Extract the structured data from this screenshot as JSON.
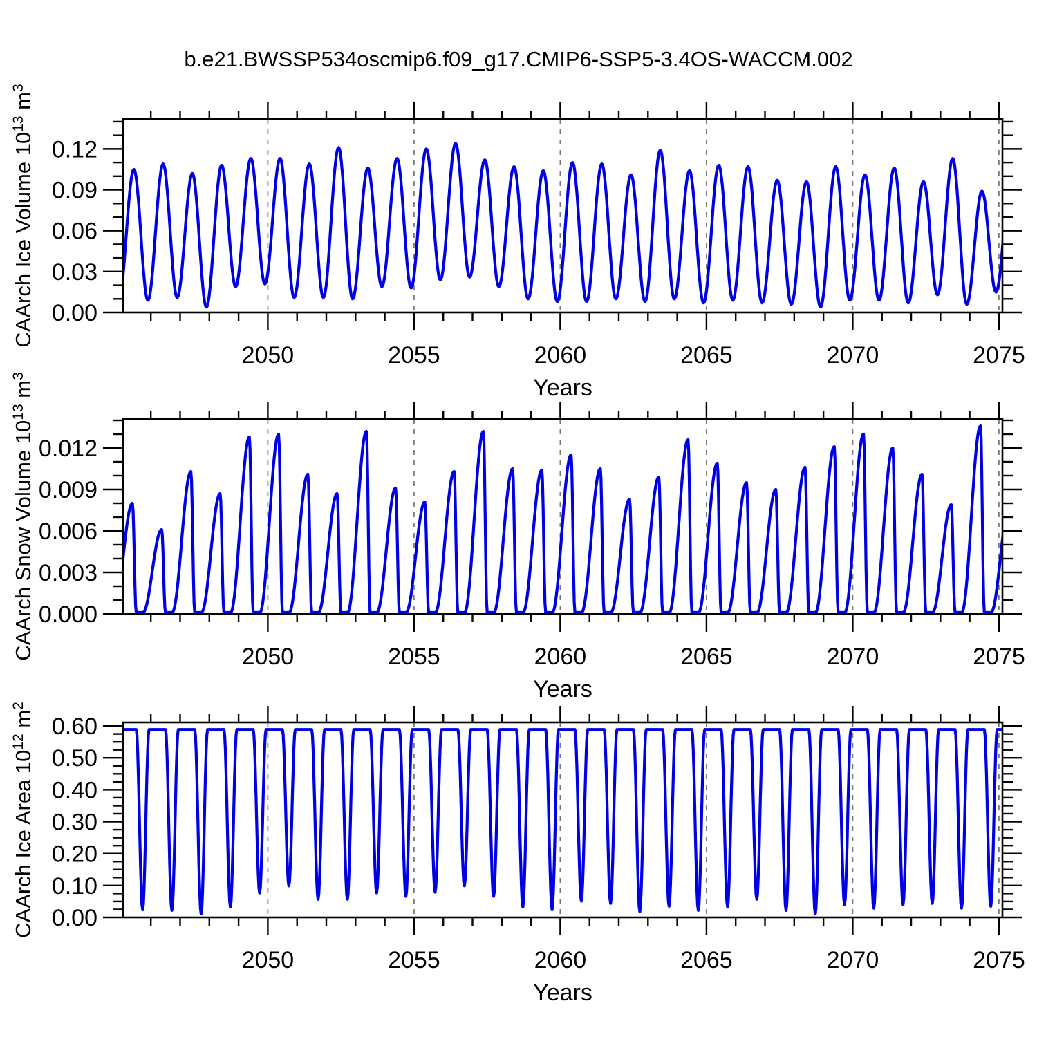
{
  "title": "b.e21.BWSSP534oscmip6.f09_g17.CMIP6-SSP5-3.4OS-WACCM.002",
  "figure": {
    "background": "#ffffff",
    "line_color": "#0000e6",
    "frame_color": "#000000",
    "grid_color": "#7a7a7a",
    "text_color": "#000000"
  },
  "chart_data": [
    {
      "name": "caarch-ice-volume",
      "type": "line",
      "ylabel_segments": [
        {
          "t": "CAArch Ice Volume 10"
        },
        {
          "t": "13",
          "sup": true
        },
        {
          "t": " m"
        },
        {
          "t": "3",
          "sup": true
        }
      ],
      "xlabel": "Years",
      "xlim": [
        2045.05,
        2075.12
      ],
      "ylim": [
        0,
        0.142
      ],
      "x_major_ticks": [
        2050,
        2055,
        2060,
        2065,
        2070,
        2075
      ],
      "x_major_labels": [
        "2050",
        "2055",
        "2060",
        "2065",
        "2070",
        "2075"
      ],
      "x_minor_step": 1,
      "grid_x": [
        2050,
        2055,
        2060,
        2065,
        2070,
        2075
      ],
      "y_major_ticks": [
        0.0,
        0.03,
        0.06,
        0.09,
        0.12
      ],
      "y_major_labels": [
        "0.00",
        "0.03",
        "0.06",
        "0.09",
        "0.12"
      ],
      "y_minor_step": 0.01,
      "waveform": "peaks-troughs",
      "shape": {
        "peak_phase": 0.42,
        "trough_phase": 0.9,
        "end_peak": 0.1
      },
      "years": [
        2045,
        2046,
        2047,
        2048,
        2049,
        2050,
        2051,
        2052,
        2053,
        2054,
        2055,
        2056,
        2057,
        2058,
        2059,
        2060,
        2061,
        2062,
        2063,
        2064,
        2065,
        2066,
        2067,
        2068,
        2069,
        2070,
        2071,
        2072,
        2073,
        2074
      ],
      "annual_max": [
        0.105,
        0.109,
        0.102,
        0.108,
        0.113,
        0.113,
        0.109,
        0.121,
        0.106,
        0.113,
        0.12,
        0.124,
        0.112,
        0.107,
        0.104,
        0.11,
        0.109,
        0.101,
        0.119,
        0.104,
        0.108,
        0.107,
        0.097,
        0.096,
        0.107,
        0.101,
        0.106,
        0.096,
        0.113,
        0.089
      ],
      "annual_min": [
        0.009,
        0.011,
        0.004,
        0.019,
        0.021,
        0.011,
        0.011,
        0.01,
        0.019,
        0.018,
        0.024,
        0.026,
        0.019,
        0.01,
        0.008,
        0.008,
        0.01,
        0.008,
        0.01,
        0.007,
        0.009,
        0.007,
        0.006,
        0.004,
        0.009,
        0.009,
        0.007,
        0.013,
        0.006,
        0.015
      ]
    },
    {
      "name": "caarch-snow-volume",
      "type": "line",
      "ylabel_segments": [
        {
          "t": "CAArch Snow Volume 10"
        },
        {
          "t": "13",
          "sup": true
        },
        {
          "t": " m"
        },
        {
          "t": "3",
          "sup": true
        }
      ],
      "xlabel": "Years",
      "xlim": [
        2045.05,
        2075.12
      ],
      "ylim": [
        0,
        0.0141
      ],
      "x_major_ticks": [
        2050,
        2055,
        2060,
        2065,
        2070,
        2075
      ],
      "x_major_labels": [
        "2050",
        "2055",
        "2060",
        "2065",
        "2070",
        "2075"
      ],
      "x_minor_step": 1,
      "grid_x": [
        2050,
        2055,
        2060,
        2065,
        2070,
        2075
      ],
      "y_major_ticks": [
        0.0,
        0.003,
        0.006,
        0.009,
        0.012
      ],
      "y_major_labels": [
        "0.000",
        "0.003",
        "0.006",
        "0.009",
        "0.012"
      ],
      "y_minor_step": 0.001,
      "waveform": "spike",
      "shape": {
        "peak_phase": 0.37,
        "zero_start": 0.5,
        "zero_end": 0.73,
        "floor": 0.0001,
        "end_peak": 0.008
      },
      "years": [
        2045,
        2046,
        2047,
        2048,
        2049,
        2050,
        2051,
        2052,
        2053,
        2054,
        2055,
        2056,
        2057,
        2058,
        2059,
        2060,
        2061,
        2062,
        2063,
        2064,
        2065,
        2066,
        2067,
        2068,
        2069,
        2070,
        2071,
        2072,
        2073,
        2074
      ],
      "annual_max": [
        0.008,
        0.0061,
        0.0103,
        0.0087,
        0.0128,
        0.013,
        0.0101,
        0.0087,
        0.0132,
        0.0091,
        0.0081,
        0.0103,
        0.0132,
        0.0105,
        0.0104,
        0.0115,
        0.0105,
        0.0083,
        0.0099,
        0.0126,
        0.0109,
        0.0095,
        0.009,
        0.0106,
        0.0121,
        0.013,
        0.012,
        0.0101,
        0.0079,
        0.0136
      ],
      "annual_min": [
        0,
        0,
        0,
        0,
        0,
        0,
        0,
        0,
        0,
        0,
        0,
        0,
        0,
        0,
        0,
        0,
        0,
        0,
        0,
        0,
        0,
        0,
        0,
        0,
        0,
        0,
        0,
        0,
        0,
        0
      ]
    },
    {
      "name": "caarch-ice-area",
      "type": "line",
      "ylabel_segments": [
        {
          "t": "CAArch Ice Area 10"
        },
        {
          "t": "12",
          "sup": true
        },
        {
          "t": " m"
        },
        {
          "t": "2",
          "sup": true
        }
      ],
      "xlabel": "Years",
      "xlim": [
        2045.05,
        2075.12
      ],
      "ylim": [
        0,
        0.611
      ],
      "x_major_ticks": [
        2050,
        2055,
        2060,
        2065,
        2070,
        2075
      ],
      "x_major_labels": [
        "2050",
        "2055",
        "2060",
        "2065",
        "2070",
        "2075"
      ],
      "x_minor_step": 1,
      "grid_x": [
        2050,
        2055,
        2060,
        2065,
        2070,
        2075
      ],
      "y_major_ticks": [
        0.0,
        0.1,
        0.2,
        0.3,
        0.4,
        0.5,
        0.6
      ],
      "y_major_labels": [
        "0.00",
        "0.10",
        "0.20",
        "0.30",
        "0.40",
        "0.50",
        "0.60"
      ],
      "y_minor_step": 0.025,
      "waveform": "plateau",
      "shape": {
        "plateau": 0.589,
        "dip_start": 0.5,
        "dip_phase": 0.72,
        "dip_end": 0.94
      },
      "years": [
        2045,
        2046,
        2047,
        2048,
        2049,
        2050,
        2051,
        2052,
        2053,
        2054,
        2055,
        2056,
        2057,
        2058,
        2059,
        2060,
        2061,
        2062,
        2063,
        2064,
        2065,
        2066,
        2067,
        2068,
        2069,
        2070,
        2071,
        2072,
        2073,
        2074
      ],
      "annual_max": [
        0.589,
        0.589,
        0.589,
        0.589,
        0.589,
        0.589,
        0.589,
        0.589,
        0.589,
        0.589,
        0.589,
        0.589,
        0.589,
        0.589,
        0.589,
        0.589,
        0.589,
        0.589,
        0.589,
        0.589,
        0.589,
        0.589,
        0.589,
        0.589,
        0.589,
        0.589,
        0.589,
        0.589,
        0.589,
        0.589
      ],
      "annual_min": [
        0.024,
        0.022,
        0.011,
        0.033,
        0.077,
        0.099,
        0.057,
        0.057,
        0.077,
        0.066,
        0.079,
        0.099,
        0.066,
        0.033,
        0.024,
        0.051,
        0.044,
        0.018,
        0.035,
        0.022,
        0.033,
        0.057,
        0.022,
        0.011,
        0.04,
        0.029,
        0.04,
        0.044,
        0.029,
        0.035
      ]
    }
  ]
}
